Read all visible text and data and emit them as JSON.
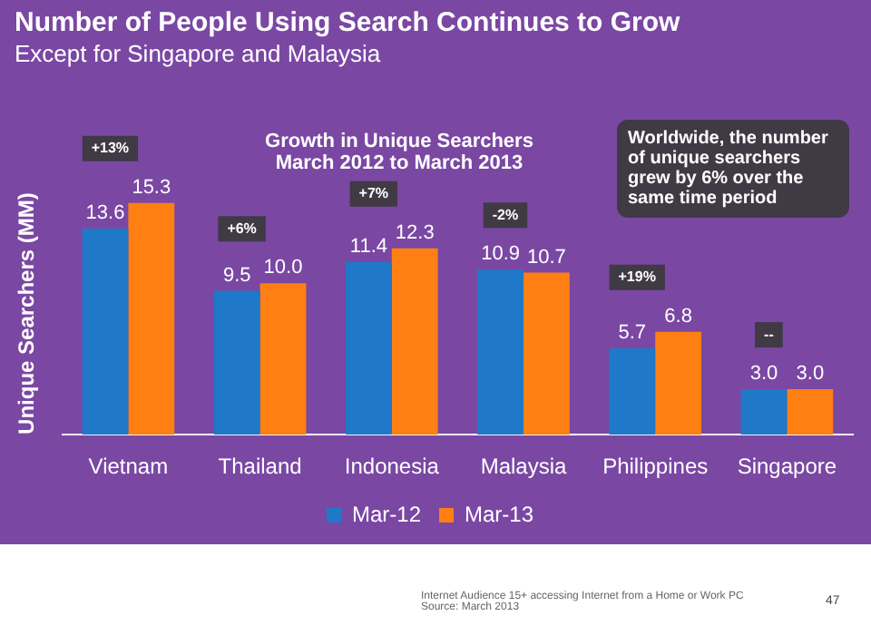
{
  "chart_data": {
    "type": "bar",
    "title": "Number of People Using Search Continues to Grow",
    "subtitle": "Except for Singapore and Malaysia",
    "ylabel": "Unique Searchers (MM)",
    "categories": [
      "Vietnam",
      "Thailand",
      "Indonesia",
      "Malaysia",
      "Philippines",
      "Singapore"
    ],
    "series": [
      {
        "name": "Mar-12",
        "color": "#1f78c8",
        "values": [
          13.6,
          9.5,
          11.4,
          10.9,
          5.7,
          3.0
        ],
        "value_labels": [
          "13.6",
          "9.5",
          "11.4",
          "10.9",
          "5.7",
          "3.0"
        ]
      },
      {
        "name": "Mar-13",
        "color": "#ff7f12",
        "values": [
          15.3,
          10.0,
          12.3,
          10.7,
          6.8,
          3.0
        ],
        "value_labels": [
          "15.3",
          "10.0",
          "12.3",
          "10.7",
          "6.8",
          "3.0"
        ]
      }
    ],
    "legend": "bottom",
    "grid": false,
    "annotations": [
      "+13%",
      "+6%",
      "+7%",
      "-2%",
      "+19%",
      "--",
      "Growth in Unique Searchers\nMarch 2012 to March 2013",
      "Worldwide, the number of unique searchers grew by 6% over the same time period",
      "Internet Audience 15+ accessing Internet from a Home or Work PC\nSource: March 2013",
      "47"
    ]
  }
}
